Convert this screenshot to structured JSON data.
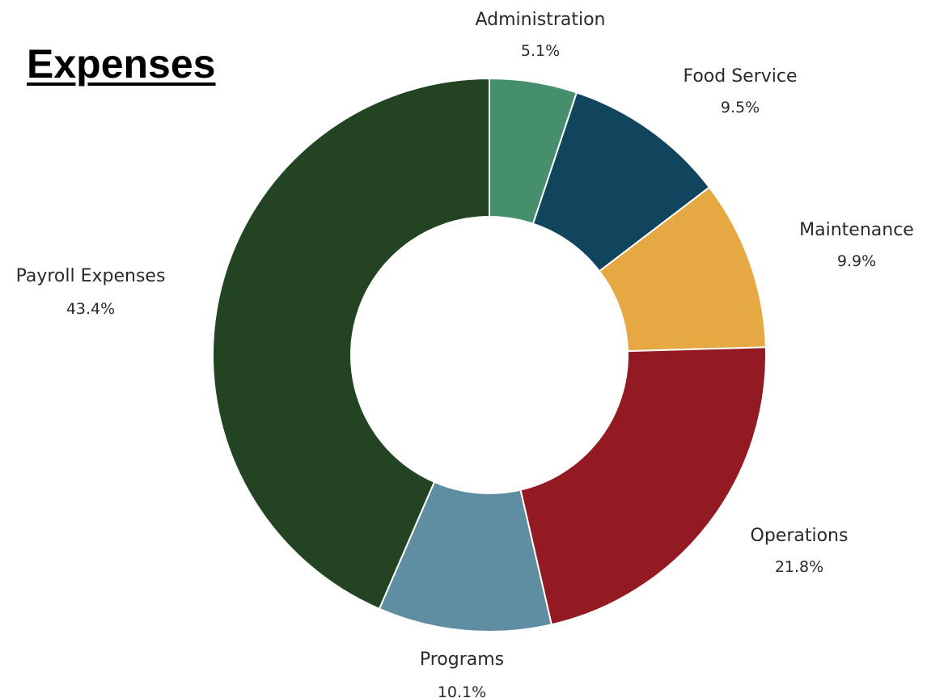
{
  "chart_data": {
    "type": "pie",
    "variant": "donut",
    "title": "Expenses",
    "slices": [
      {
        "label": "Administration",
        "value": 5.1,
        "display": "5.1%",
        "color": "#468f6d"
      },
      {
        "label": "Food Service",
        "value": 9.5,
        "display": "9.5%",
        "color": "#11455e"
      },
      {
        "label": "Maintenance",
        "value": 9.9,
        "display": "9.9%",
        "color": "#e6a842"
      },
      {
        "label": "Operations",
        "value": 21.8,
        "display": "21.8%",
        "color": "#931a22"
      },
      {
        "label": "Programs",
        "value": 10.1,
        "display": "10.1%",
        "color": "#5f8ea2"
      },
      {
        "label": "Payroll Expenses",
        "value": 43.4,
        "display": "43.4%",
        "color": "#224422"
      }
    ]
  }
}
